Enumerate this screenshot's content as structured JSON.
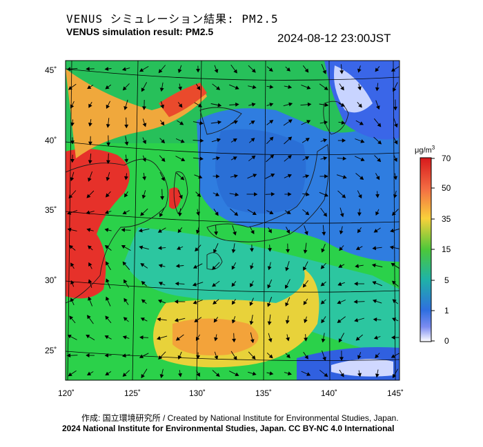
{
  "header": {
    "title_jp": "VENUS シミュレーション結果: PM2.5",
    "title_en": "VENUS simulation result: PM2.5",
    "timestamp": "2024-08-12 23:00JST"
  },
  "map": {
    "lat_labels": [
      "45˚",
      "40˚",
      "35˚",
      "30˚",
      "25˚"
    ],
    "lon_labels": [
      "120˚",
      "125˚",
      "130˚",
      "135˚",
      "140˚",
      "145˚"
    ]
  },
  "colorbar": {
    "unit_prefix": "μg/m",
    "unit_sup": "3",
    "ticks": [
      "70",
      "50",
      "35",
      "15",
      "5",
      "1",
      "0"
    ],
    "colors": [
      "#d7191c",
      "#f46d43",
      "#fdae61",
      "#a6d96a",
      "#1a9641",
      "#2b83ba",
      "#6a5acd",
      "#ffffff"
    ]
  },
  "footer": {
    "credit": "作成: 国立環境研究所 / Created by National Institute for Environmental Studies, Japan.",
    "license": "2024 National Institute for Environmental Studies, Japan. CC BY-NC 4.0 International"
  }
}
